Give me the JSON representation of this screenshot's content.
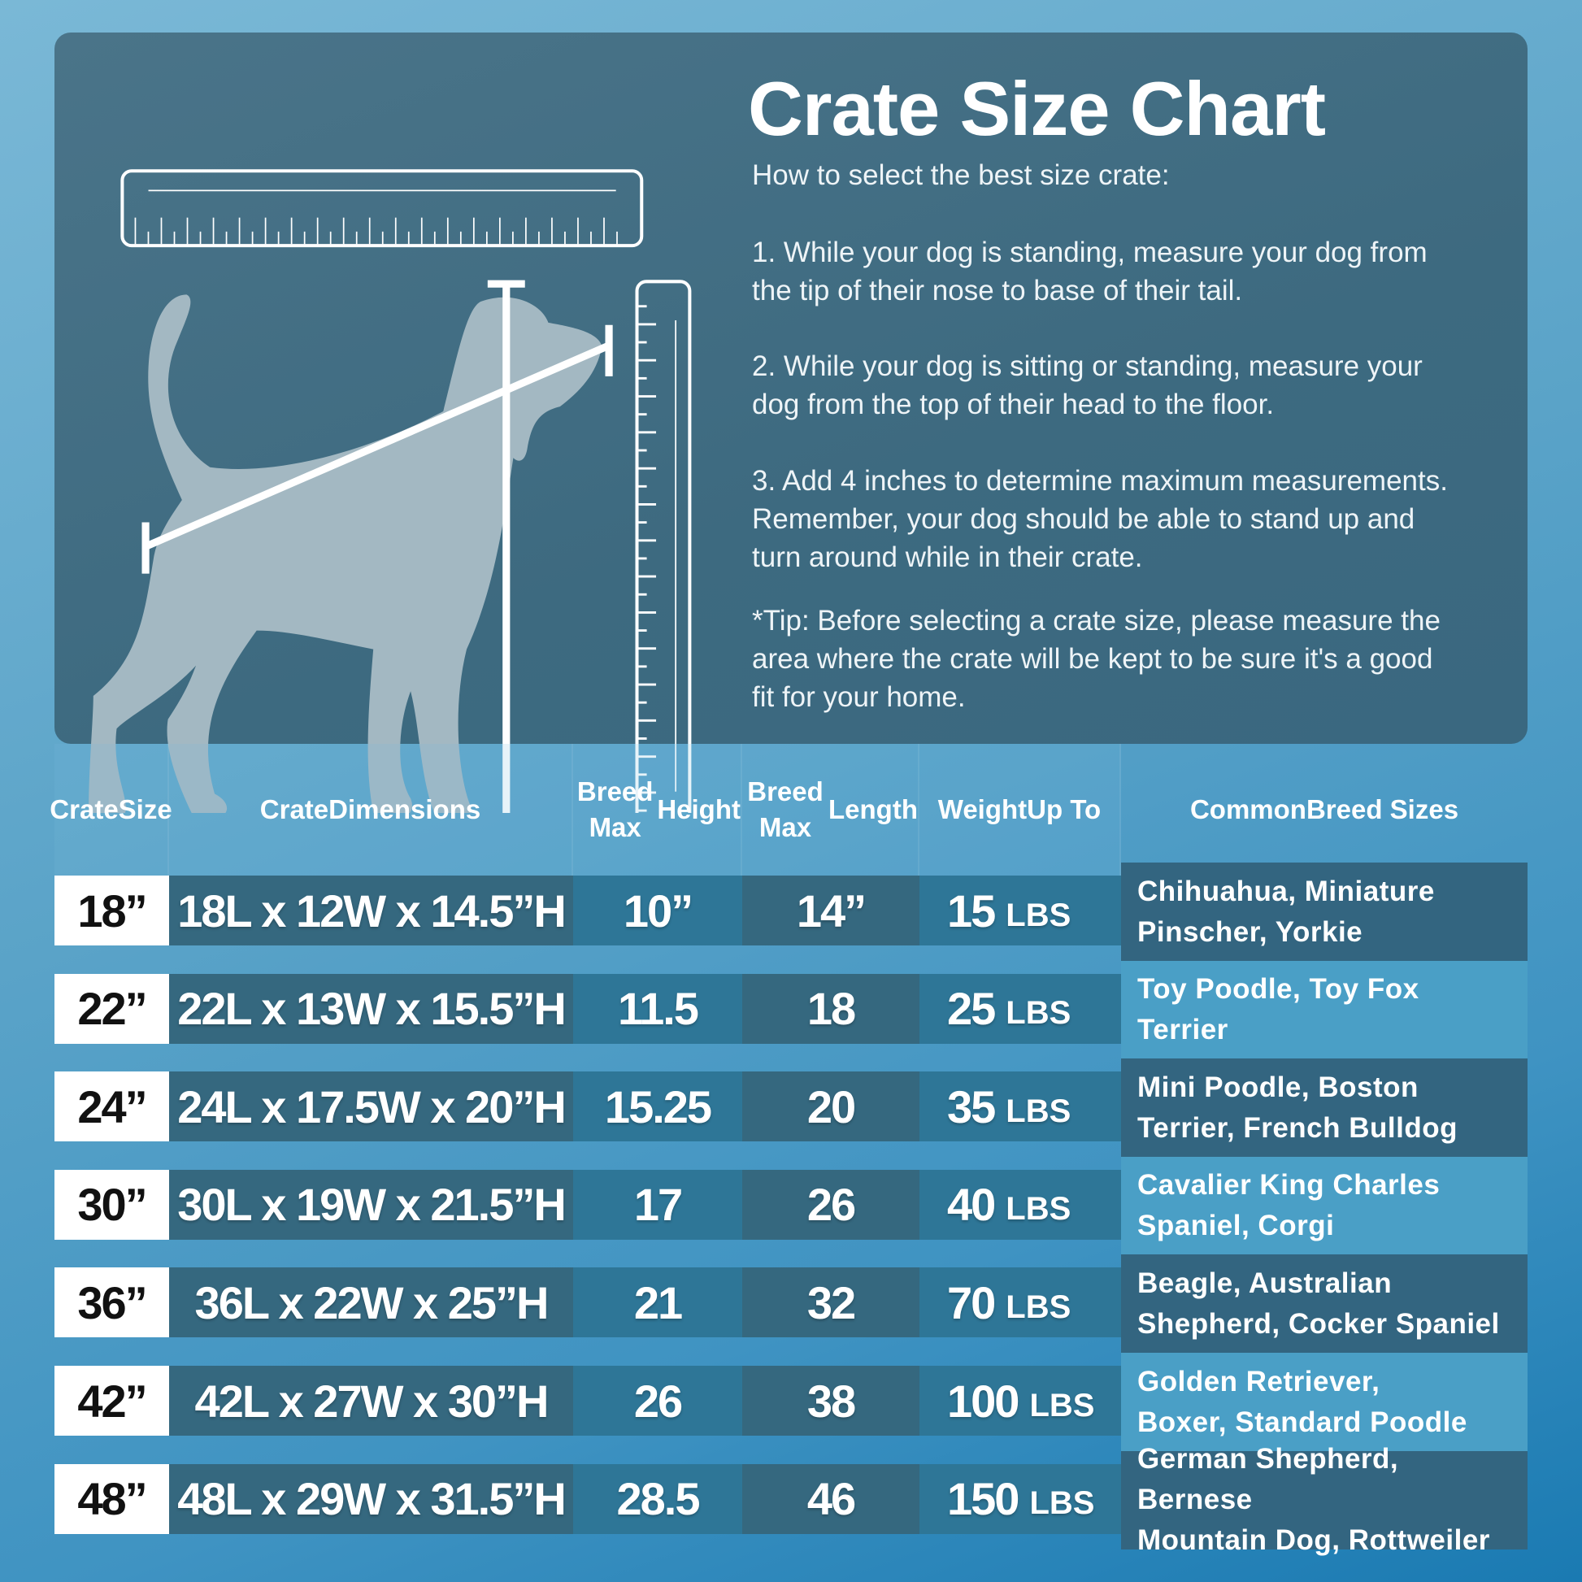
{
  "title": "Crate Size Chart",
  "intro": "How to select the best size crate:",
  "steps": [
    [
      "1. While your dog is standing, measure your dog from",
      "the tip of their nose to base of their tail."
    ],
    [
      "2. While your dog is sitting or standing, measure your",
      "dog from the top of their head to the floor."
    ],
    [
      "3. Add 4 inches to determine maximum measurements.",
      "Remember, your dog should be able to stand up and",
      "turn around while in their crate."
    ]
  ],
  "tip": [
    "*Tip: Before selecting a crate size, please measure the",
    "area where the crate will be kept to be sure it's a good",
    "fit for your home."
  ],
  "headers": [
    [
      "Crate",
      "Size"
    ],
    [
      "Crate",
      "Dimensions"
    ],
    [
      "Breed Max",
      "Height"
    ],
    [
      "Breed Max",
      "Length"
    ],
    [
      "Weight",
      "Up To"
    ],
    [
      "Common",
      "Breed Sizes"
    ]
  ],
  "unit": "LBS",
  "rows": [
    {
      "size": "18”",
      "dims": "18L x 12W x 14.5”H",
      "height": "10”",
      "length": "14”",
      "weight": "15",
      "breeds": [
        "Chihuahua, Miniature",
        "Pinscher, Yorkie"
      ]
    },
    {
      "size": "22”",
      "dims": "22L x 13W x 15.5”H",
      "height": "11.5",
      "length": "18",
      "weight": "25",
      "breeds": [
        "Toy Poodle, Toy Fox",
        "Terrier"
      ]
    },
    {
      "size": "24”",
      "dims": "24L x 17.5W x 20”H",
      "height": "15.25",
      "length": "20",
      "weight": "35",
      "breeds": [
        "Mini Poodle, Boston",
        "Terrier, French Bulldog"
      ]
    },
    {
      "size": "30”",
      "dims": "30L x 19W x 21.5”H",
      "height": "17",
      "length": "26",
      "weight": "40",
      "breeds": [
        "Cavalier King Charles",
        "Spaniel, Corgi"
      ]
    },
    {
      "size": "36”",
      "dims": "36L x 22W x 25”H",
      "height": "21",
      "length": "32",
      "weight": "70",
      "breeds": [
        "Beagle, Australian",
        "Shepherd, Cocker Spaniel"
      ]
    },
    {
      "size": "42”",
      "dims": "42L x 27W x 30”H",
      "height": "26",
      "length": "38",
      "weight": "100",
      "breeds": [
        "Golden Retriever,",
        "Boxer, Standard Poodle"
      ]
    },
    {
      "size": "48”",
      "dims": "48L x 29W x 31.5”H",
      "height": "28.5",
      "length": "46",
      "weight": "150",
      "breeds": [
        "German Shepherd, Bernese",
        "Mountain Dog, Rottweiler"
      ]
    }
  ],
  "colors": {
    "panel": "#3d6a80",
    "cell_dark": "#35687f",
    "cell_mid": "#2e7697",
    "breed_dark": "#336580",
    "breed_light": "#4a9fc6",
    "silhouette": "#a3b8c2"
  }
}
